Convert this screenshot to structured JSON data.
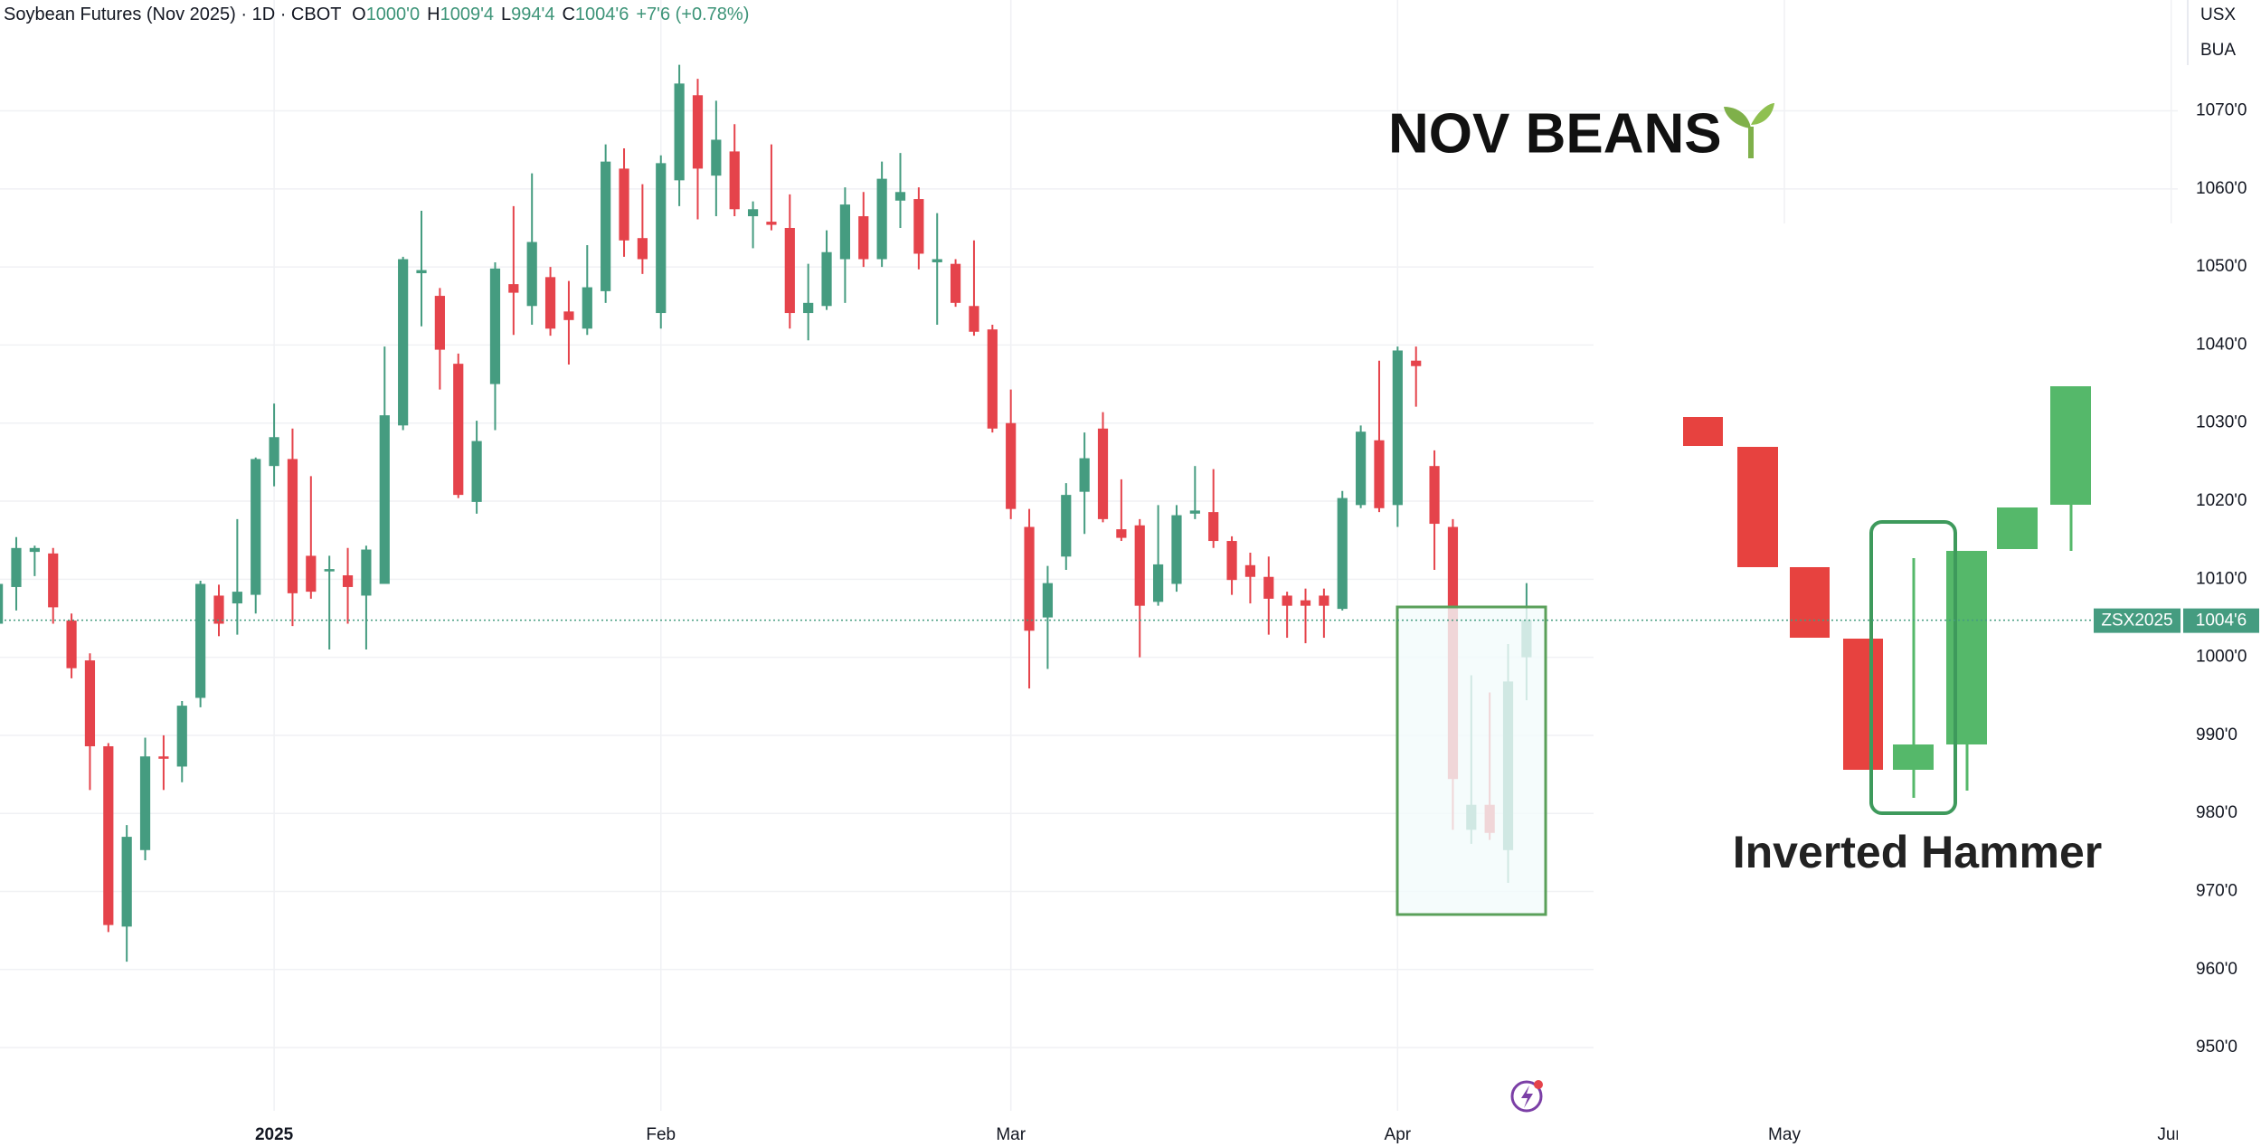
{
  "header": {
    "title": "Soybean Futures (Nov 2025) · 1D · CBOT",
    "open_label": "O",
    "open": "1000'0",
    "high_label": "H",
    "high": "1009'4",
    "low_label": "L",
    "low": "994'4",
    "close_label": "C",
    "close": "1004'6",
    "change": "+7'6 (+0.78%)"
  },
  "currency_badges": [
    "USX",
    "BUA"
  ],
  "annotations": {
    "headline": "NOV BEANS",
    "pattern_label": "Inverted Hammer"
  },
  "chart_data": {
    "type": "candlestick",
    "open": [
      1004.3,
      1009,
      1013.5,
      1013.3,
      1004.7,
      999.6,
      988.6,
      965.5,
      975.3,
      987.3,
      986,
      994.8,
      1007.9,
      1006.9,
      1008,
      1024.5,
      1025.4,
      1013,
      1011,
      1010.5,
      1007.9,
      1009.4,
      1029.7,
      1049.2,
      1046.3,
      1037.6,
      1019.9,
      1035,
      1047.8,
      1045,
      1048.7,
      1044.3,
      1042.1,
      1046.9,
      1062.6,
      1053.7,
      1044.1,
      1061.1,
      1072,
      1061.7,
      1064.8,
      1056.5,
      1055.8,
      1055,
      1044.1,
      1045,
      1051,
      1056.5,
      1051,
      1058.5,
      1058.7,
      1050.6,
      1050.4,
      1045,
      1042,
      1030,
      1016.7,
      1005.1,
      1012.9,
      1021.2,
      1029.3,
      1016.4,
      1016.9,
      1007.1,
      1009.4,
      1018.4,
      1018.6,
      1014.9,
      1011.8,
      1010.3,
      1007.9,
      1007.3,
      1007.9,
      1006.2,
      1019.5,
      1027.8,
      1019.5,
      1038,
      1024.5,
      1016.7,
      977.9,
      981.1,
      975.3,
      1000
    ],
    "high": [
      1010,
      1015.4,
      1014.3,
      1014,
      1005.6,
      1000.5,
      989,
      978.5,
      989.7,
      990,
      994.4,
      1009.8,
      1009.3,
      1017.7,
      1025.6,
      1032.5,
      1029.3,
      1023.2,
      1013,
      1014,
      1014.3,
      1039.8,
      1051.3,
      1057.2,
      1047.3,
      1038.9,
      1030.3,
      1050.6,
      1057.8,
      1062,
      1050,
      1048.2,
      1052.8,
      1065.7,
      1065.2,
      1060.6,
      1064.3,
      1075.9,
      1074.1,
      1071.3,
      1068.3,
      1058.4,
      1065.7,
      1059.3,
      1050.4,
      1054.7,
      1060.2,
      1059.6,
      1063.5,
      1064.6,
      1060.2,
      1056.9,
      1051,
      1053.4,
      1042.6,
      1034.3,
      1019,
      1011.7,
      1022.3,
      1028.8,
      1031.4,
      1022.8,
      1017.7,
      1019.5,
      1019.5,
      1024.5,
      1024.1,
      1015.5,
      1013.4,
      1012.9,
      1008.4,
      1008.8,
      1008.8,
      1021.3,
      1029.7,
      1038,
      1039.8,
      1039.8,
      1026.5,
      1017.7,
      997.7,
      995.5,
      1001.7,
      1009.5
    ],
    "low": [
      1004,
      1006,
      1010.4,
      1004.3,
      997.3,
      983,
      964.8,
      961,
      974,
      983,
      984,
      993.6,
      1002.7,
      1002.9,
      1005.6,
      1021.9,
      1004,
      1007.5,
      1001,
      1004.3,
      1001,
      1009.4,
      1029.1,
      1042.4,
      1034.3,
      1020.4,
      1018.4,
      1029.1,
      1041.3,
      1042.6,
      1041.2,
      1037.5,
      1041.3,
      1045.4,
      1051.3,
      1049.1,
      1042.1,
      1057.8,
      1056.1,
      1056.5,
      1056.5,
      1052.4,
      1054.7,
      1042.1,
      1040.6,
      1044.5,
      1045.4,
      1050,
      1050,
      1055,
      1049.7,
      1042.6,
      1044.9,
      1041.2,
      1028.8,
      1017.7,
      996,
      998.5,
      1011.2,
      1015.8,
      1017.3,
      1014.9,
      1000,
      1006.6,
      1008.4,
      1017.7,
      1014,
      1008,
      1006.9,
      1002.9,
      1002.5,
      1001.8,
      1002.5,
      1006,
      1019.1,
      1018.6,
      1016.7,
      1032.1,
      1011.2,
      977.9,
      976.1,
      976.6,
      971.1,
      994.5
    ],
    "close": [
      1009.4,
      1014,
      1014,
      1006.4,
      998.6,
      988.6,
      965.7,
      977,
      987.3,
      987,
      993.8,
      1009.4,
      1004.3,
      1008.4,
      1025.4,
      1028.2,
      1008.2,
      1008.4,
      1011.3,
      1009,
      1013.8,
      1031,
      1051,
      1049.6,
      1039.4,
      1020.8,
      1027.7,
      1049.8,
      1046.7,
      1053.2,
      1042.1,
      1043.2,
      1047.4,
      1063.5,
      1053.4,
      1051,
      1063.3,
      1073.5,
      1062.6,
      1066.3,
      1057.4,
      1057.4,
      1055.4,
      1044.1,
      1045.4,
      1051.9,
      1058,
      1051,
      1061.3,
      1059.6,
      1051.7,
      1051,
      1045.4,
      1041.7,
      1029.3,
      1019,
      1003.4,
      1009.5,
      1020.8,
      1025.5,
      1017.7,
      1015.3,
      1006.6,
      1011.9,
      1018.2,
      1018.8,
      1014.9,
      1009.9,
      1010.3,
      1007.5,
      1006.6,
      1006.6,
      1006.6,
      1020.4,
      1028.9,
      1019.1,
      1039.3,
      1037.3,
      1017.1,
      984.4,
      981.1,
      977.5,
      996.9,
      1004.75
    ],
    "up_color": "#459c80",
    "down_color": "#e5434b",
    "ylim": [
      941.9,
      1084.2
    ],
    "yticks": [
      {
        "value": 950,
        "label": "950'0"
      },
      {
        "value": 960,
        "label": "960'0"
      },
      {
        "value": 970,
        "label": "970'0"
      },
      {
        "value": 980,
        "label": "980'0"
      },
      {
        "value": 990,
        "label": "990'0"
      },
      {
        "value": 1000,
        "label": "1000'0"
      },
      {
        "value": 1010,
        "label": "1010'0"
      },
      {
        "value": 1020,
        "label": "1020'0"
      },
      {
        "value": 1030,
        "label": "1030'0"
      },
      {
        "value": 1040,
        "label": "1040'0"
      },
      {
        "value": 1050,
        "label": "1050'0"
      },
      {
        "value": 1060,
        "label": "1060'0"
      },
      {
        "value": 1070,
        "label": "1070'0"
      }
    ],
    "xlim": [
      0.117,
      118.36
    ],
    "xticks": [
      {
        "value": 15,
        "label": "2025"
      },
      {
        "value": 36,
        "label": "Feb"
      },
      {
        "value": 55,
        "label": "Mar"
      },
      {
        "value": 76,
        "label": "Apr"
      },
      {
        "value": 97,
        "label": "May"
      },
      {
        "value": 118,
        "label": "Jun"
      }
    ],
    "grid": true,
    "symbol": "ZSX2025",
    "last_price": {
      "value": 1004.75,
      "label": "1004'6"
    }
  }
}
